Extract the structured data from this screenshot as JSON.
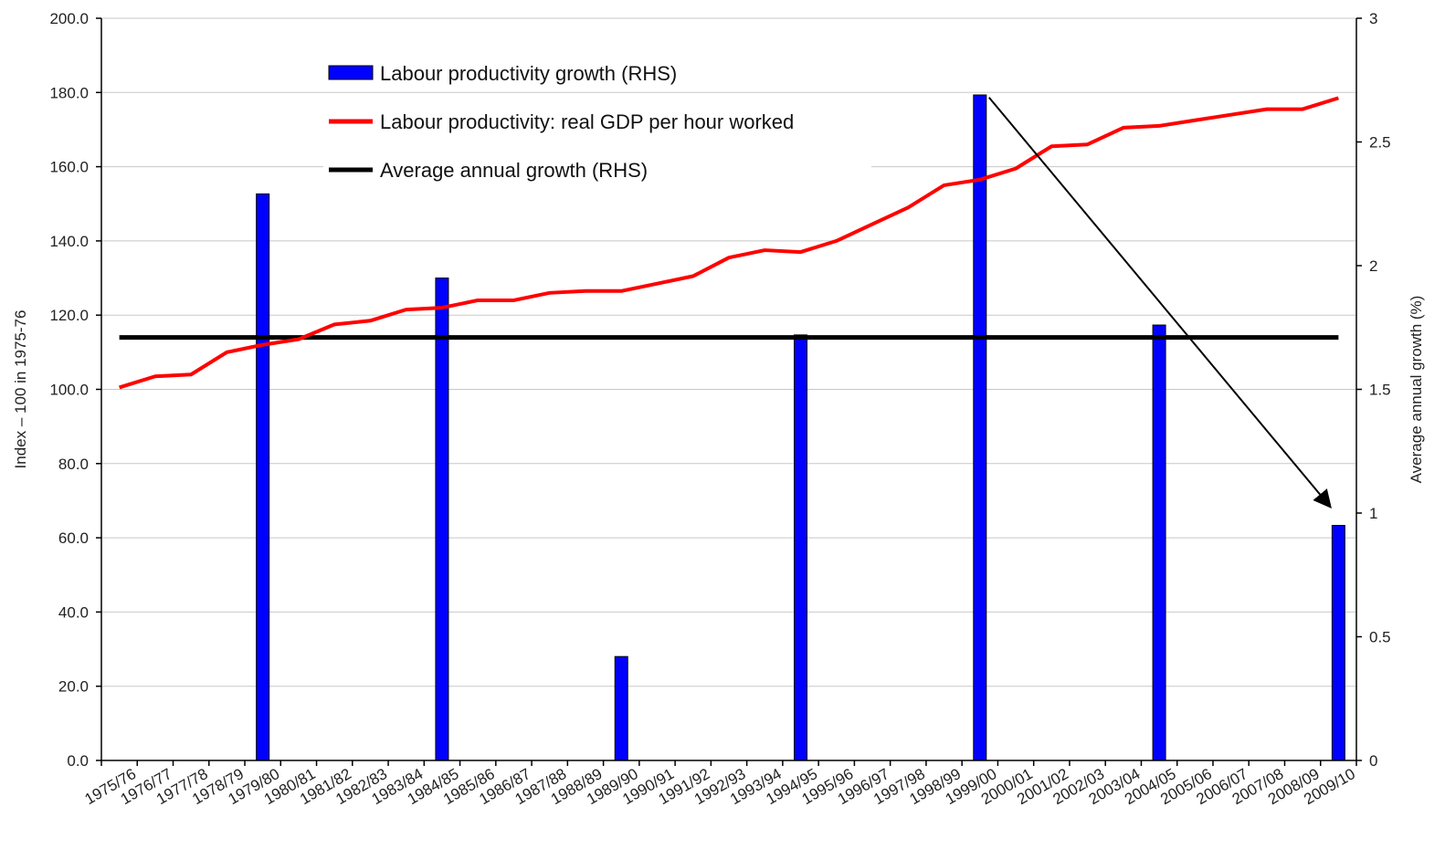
{
  "chart_data": {
    "type": "bar",
    "categories": [
      "1975/76",
      "1976/77",
      "1977/78",
      "1978/79",
      "1979/80",
      "1980/81",
      "1981/82",
      "1982/83",
      "1983/84",
      "1984/85",
      "1985/86",
      "1986/87",
      "1987/88",
      "1988/89",
      "1989/90",
      "1990/91",
      "1991/92",
      "1992/93",
      "1993/94",
      "1994/95",
      "1995/96",
      "1996/97",
      "1997/98",
      "1998/99",
      "1999/00",
      "2000/01",
      "2001/02",
      "2002/03",
      "2003/04",
      "2004/05",
      "2005/06",
      "2006/07",
      "2007/08",
      "2008/09",
      "2009/10"
    ],
    "series": [
      {
        "name": "Labour productivity growth (RHS)",
        "type": "bar",
        "axis": "right",
        "color": "#0000ff",
        "x": [
          "1979/80",
          "1984/85",
          "1989/90",
          "1994/95",
          "1999/00",
          "2004/05",
          "2009/10"
        ],
        "values": [
          2.29,
          1.95,
          0.42,
          1.72,
          2.69,
          1.76,
          0.95
        ]
      },
      {
        "name": "Labour productivity: real GDP per hour worked",
        "type": "line",
        "axis": "left",
        "color": "#ff0000",
        "values": [
          100.5,
          103.5,
          104,
          110,
          112,
          113.5,
          117.5,
          118.5,
          121.5,
          122,
          124,
          124,
          126,
          126.5,
          126.5,
          128.5,
          130.5,
          135.5,
          137.5,
          137,
          140,
          144.5,
          149,
          155,
          156.5,
          159.5,
          165.5,
          166,
          170.5,
          171,
          172.5,
          174,
          175.5,
          175.5,
          178.5
        ]
      },
      {
        "name": "Average annual growth (RHS)",
        "type": "line",
        "axis": "right",
        "color": "#000000",
        "value": 1.71
      }
    ],
    "left_axis": {
      "label": "Index – 100 in 1975-76",
      "ylim": [
        0,
        200
      ],
      "ticks": [
        "0.0",
        "20.0",
        "40.0",
        "60.0",
        "80.0",
        "100.0",
        "120.0",
        "140.0",
        "160.0",
        "180.0",
        "200.0"
      ]
    },
    "right_axis": {
      "label": "Average annual growth (%)",
      "ylim": [
        0,
        3
      ],
      "ticks": [
        "0",
        "0.5",
        "1",
        "1.5",
        "2",
        "2.5",
        "3"
      ]
    },
    "legend": {
      "placement": "top-left",
      "items": [
        "Labour productivity growth (RHS)",
        "Labour productivity: real GDP per hour worked",
        "Average annual growth (RHS)"
      ]
    },
    "annotations": [
      {
        "type": "arrow",
        "from": [
          "1999/00",
          2.68
        ],
        "to": [
          "2009/10",
          1.03
        ]
      }
    ],
    "grid": true
  }
}
